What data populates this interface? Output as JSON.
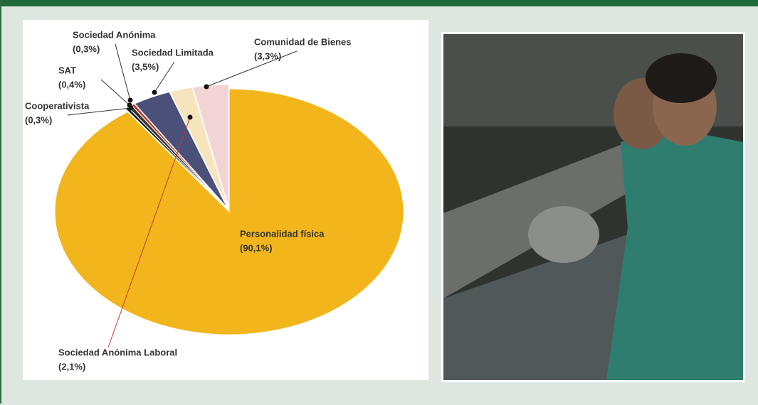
{
  "chart_data": {
    "type": "pie",
    "categories": [
      "Personalidad física",
      "Cooperativista",
      "SAT",
      "Sociedad Anónima",
      "Sociedad Limitada",
      "Sociedad Anónima Laboral",
      "Comunidad de Bienes"
    ],
    "values": [
      90.1,
      0.3,
      0.4,
      0.3,
      3.5,
      2.1,
      3.3
    ],
    "value_labels": [
      "(90,1%)",
      "(0,3%)",
      "(0,4%)",
      "(0,3%)",
      "(3,5%)",
      "(2,1%)",
      "(3,3%)"
    ],
    "colors": [
      "#f2b51c",
      "#1a1a1a",
      "#333333",
      "#c0392b",
      "#4a5078",
      "#f6e4bd",
      "#f3d4d4"
    ]
  }
}
